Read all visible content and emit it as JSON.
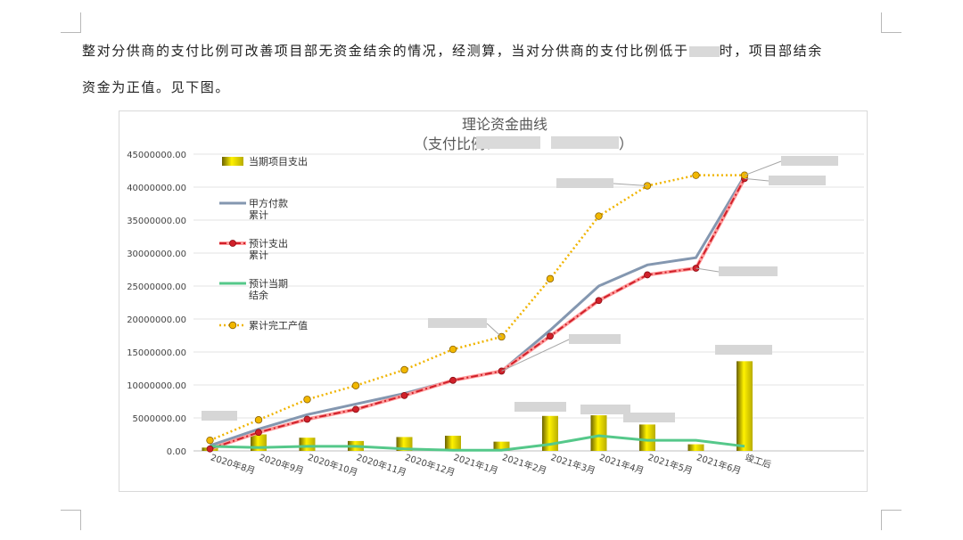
{
  "document": {
    "line1": "整对分供商的支付比例可改善项目部无资金结余的情况，经测算，当对分供商的支付比例低于",
    "line1_end": "时，项目部结余",
    "line2": "资金为正值。见下图。"
  },
  "chart_data": {
    "type": "bar",
    "title": "理论资金曲线",
    "subtitle_prefix": "（支付比例：",
    "subtitle_suffix": "）",
    "categories": [
      "2020年8月",
      "2020年9月",
      "2020年10月",
      "2020年11月",
      "2020年12月",
      "2021年1月",
      "2021年2月",
      "2021年3月",
      "2021年4月",
      "2021年5月",
      "2021年6月",
      "竣工后"
    ],
    "ylim": [
      0,
      45000000
    ],
    "yticks": [
      "0.00",
      "5000000.00",
      "10000000.00",
      "15000000.00",
      "20000000.00",
      "25000000.00",
      "30000000.00",
      "35000000.00",
      "40000000.00",
      "45000000.00"
    ],
    "legend_placement": "left",
    "grid": true,
    "series": [
      {
        "name": "当期项目支出",
        "kind": "bar",
        "color": "#f2e600",
        "values": [
          500000,
          2500000,
          2000000,
          1500000,
          2100000,
          2300000,
          1400000,
          5300000,
          5400000,
          4000000,
          1000000,
          13600000
        ]
      },
      {
        "name": "甲方付款\n累计",
        "kind": "line",
        "color": "#8497b0",
        "values": [
          800000,
          3300000,
          5500000,
          7100000,
          8700000,
          10700000,
          12100000,
          18300000,
          25000000,
          28200000,
          29300000,
          41700000
        ]
      },
      {
        "name": "预计支出\n累计",
        "kind": "line-marker",
        "color": "#e03030",
        "values": [
          300000,
          2800000,
          4800000,
          6300000,
          8400000,
          10700000,
          12100000,
          17400000,
          22800000,
          26700000,
          27700000,
          41300000
        ]
      },
      {
        "name": "预计当期\n结余",
        "kind": "line",
        "color": "#55c88a",
        "values": [
          700000,
          500000,
          700000,
          700000,
          300000,
          100000,
          100000,
          1000000,
          2300000,
          1600000,
          1600000,
          700000
        ]
      },
      {
        "name": "累计完工产值",
        "kind": "dotted-marker",
        "color": "#f0b400",
        "values": [
          1600000,
          4700000,
          7800000,
          9900000,
          12300000,
          15400000,
          17300000,
          26100000,
          35600000,
          40200000,
          41800000,
          41800000
        ]
      }
    ]
  }
}
